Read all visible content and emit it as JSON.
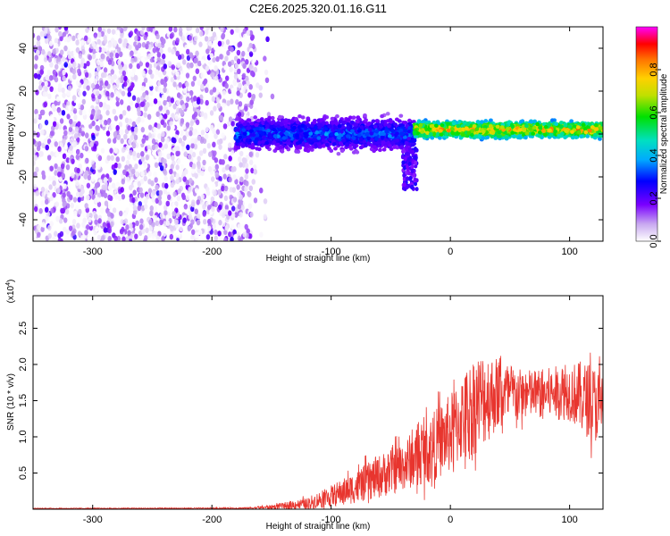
{
  "title": "C2E6.2025.320.01.16.G11",
  "chart_data": [
    {
      "type": "heatmap",
      "xlabel": "Height of straight line (km)",
      "ylabel": "Frequency (Hz)",
      "xlim": [
        -350,
        128
      ],
      "ylim": [
        -50,
        50
      ],
      "x_ticks": [
        "-300",
        "-200",
        "-100",
        "0",
        "100"
      ],
      "y_ticks": [
        "-40",
        "-20",
        "0",
        "20",
        "40"
      ],
      "colorbar": {
        "label": "Normalized spectral amplitude",
        "range": [
          0,
          1
        ],
        "ticks": [
          "0.0",
          "0.2",
          "0.4",
          "0.6",
          "0.8"
        ]
      },
      "regions": [
        {
          "x_range": [
            -350,
            -165
          ],
          "freq_range": [
            -50,
            50
          ],
          "amplitude": [
            0.0,
            0.15
          ]
        },
        {
          "x_range": [
            -180,
            -30
          ],
          "freq_range": [
            -10,
            10
          ],
          "amplitude": [
            0.1,
            0.4
          ]
        },
        {
          "x_range": [
            -30,
            128
          ],
          "freq_range": [
            -3,
            7
          ],
          "amplitude": [
            0.3,
            0.9
          ]
        }
      ],
      "grid": false
    },
    {
      "type": "line",
      "xlabel": "Height of straight line (km)",
      "ylabel": "SNR (10 * v/v)",
      "y_multiplier": "(x10",
      "y_multiplier_exp": "4",
      "xlim": [
        -350,
        128
      ],
      "ylim": [
        0,
        2.95
      ],
      "x_ticks": [
        "-300",
        "-200",
        "-100",
        "0",
        "100"
      ],
      "y_ticks": [
        "0.5",
        "1.0",
        "1.5",
        "2.0",
        "2.5"
      ],
      "color": "#e8352e",
      "envelope": {
        "x": [
          -350,
          -200,
          -170,
          -150,
          -120,
          -100,
          -80,
          -60,
          -40,
          -20,
          0,
          10,
          20,
          30,
          40,
          60,
          80,
          100,
          110,
          128
        ],
        "mean": [
          0.01,
          0.012,
          0.015,
          0.03,
          0.08,
          0.18,
          0.3,
          0.45,
          0.6,
          0.8,
          1.05,
          1.25,
          1.45,
          1.55,
          1.6,
          1.58,
          1.6,
          1.62,
          1.55,
          1.4
        ],
        "amp": [
          0.005,
          0.008,
          0.01,
          0.03,
          0.08,
          0.15,
          0.22,
          0.3,
          0.35,
          0.45,
          0.55,
          0.6,
          0.7,
          0.65,
          0.5,
          0.35,
          0.35,
          0.4,
          0.5,
          0.55
        ]
      },
      "grid": false
    }
  ]
}
